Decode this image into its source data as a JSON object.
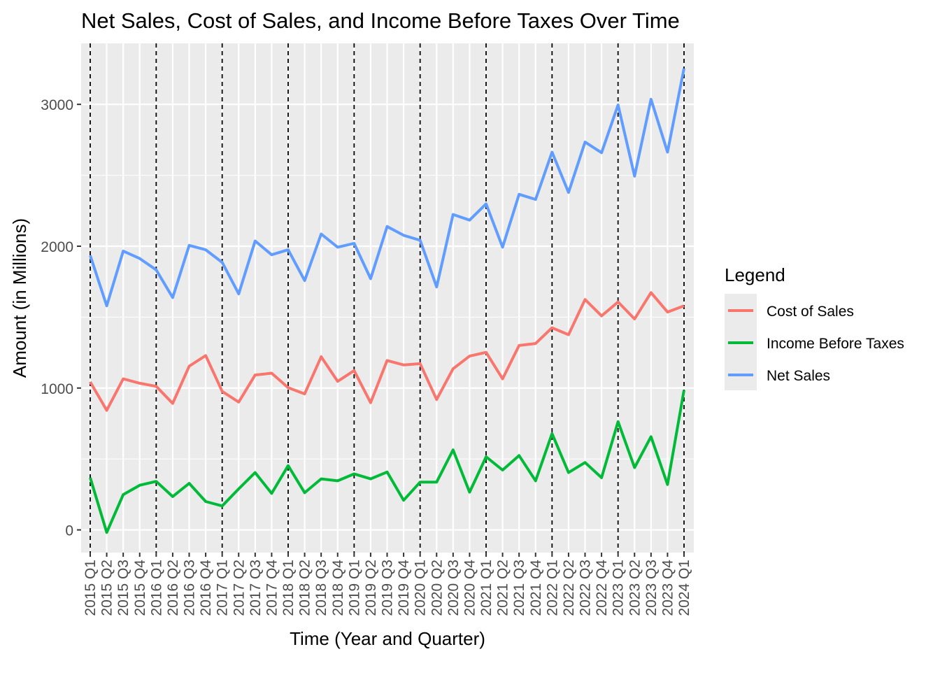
{
  "chart_data": {
    "type": "line",
    "title": "Net Sales, Cost of Sales, and Income Before Taxes Over Time",
    "xlabel": "Time (Year and Quarter)",
    "ylabel": "Amount (in Millions)",
    "ylim": [
      -160,
      3430
    ],
    "yticks": [
      0,
      1000,
      2000,
      3000
    ],
    "grid": true,
    "legend": {
      "title": "Legend",
      "placement": "right"
    },
    "categories": [
      "2015 Q1",
      "2015 Q2",
      "2015 Q3",
      "2015 Q4",
      "2016 Q1",
      "2016 Q2",
      "2016 Q3",
      "2016 Q4",
      "2017 Q1",
      "2017 Q2",
      "2017 Q3",
      "2017 Q4",
      "2018 Q1",
      "2018 Q2",
      "2018 Q3",
      "2018 Q4",
      "2019 Q1",
      "2019 Q2",
      "2019 Q3",
      "2019 Q4",
      "2020 Q1",
      "2020 Q2",
      "2020 Q3",
      "2020 Q4",
      "2021 Q1",
      "2021 Q2",
      "2021 Q3",
      "2021 Q4",
      "2022 Q1",
      "2022 Q2",
      "2022 Q3",
      "2022 Q4",
      "2023 Q1",
      "2023 Q2",
      "2023 Q3",
      "2023 Q4",
      "2024 Q1"
    ],
    "year_start_markers": [
      "2015 Q1",
      "2016 Q1",
      "2017 Q1",
      "2018 Q1",
      "2019 Q1",
      "2020 Q1",
      "2021 Q1",
      "2022 Q1",
      "2023 Q1",
      "2024 Q1"
    ],
    "series": [
      {
        "name": "Cost of Sales",
        "color": "#F8766D",
        "values": [
          1043,
          843,
          1065,
          1034,
          1012,
          892,
          1154,
          1229,
          976,
          901,
          1092,
          1105,
          1003,
          959,
          1221,
          1047,
          1123,
          897,
          1194,
          1163,
          1172,
          919,
          1136,
          1225,
          1252,
          1065,
          1300,
          1314,
          1425,
          1376,
          1624,
          1509,
          1607,
          1487,
          1673,
          1536,
          1580
        ]
      },
      {
        "name": "Income Before Taxes",
        "color": "#00BA38",
        "values": [
          368,
          -18,
          249,
          315,
          342,
          235,
          328,
          200,
          169,
          289,
          404,
          257,
          453,
          262,
          360,
          346,
          395,
          360,
          408,
          209,
          337,
          337,
          564,
          266,
          515,
          422,
          524,
          346,
          679,
          404,
          475,
          368,
          763,
          439,
          657,
          320,
          985
        ]
      },
      {
        "name": "Net Sales",
        "color": "#619CFF",
        "values": [
          1935,
          1580,
          1966,
          1913,
          1833,
          1638,
          2006,
          1975,
          1886,
          1664,
          2037,
          1940,
          1975,
          1758,
          2086,
          1993,
          2020,
          1771,
          2139,
          2077,
          2042,
          1713,
          2224,
          2184,
          2299,
          1993,
          2366,
          2330,
          2663,
          2379,
          2734,
          2659,
          2996,
          2494,
          3036,
          2663,
          3253
        ]
      }
    ]
  }
}
